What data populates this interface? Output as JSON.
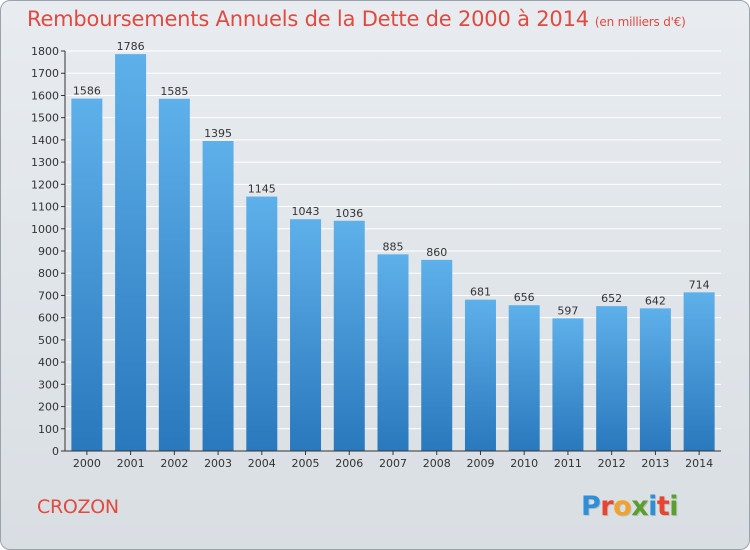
{
  "chart_data": {
    "type": "bar",
    "title": "Remboursements Annuels de la Dette de 2000 à 2014",
    "subtitle": "(en milliers d'€)",
    "categories": [
      "2000",
      "2001",
      "2002",
      "2003",
      "2004",
      "2005",
      "2006",
      "2007",
      "2008",
      "2009",
      "2010",
      "2011",
      "2012",
      "2013",
      "2014"
    ],
    "values": [
      1586,
      1786,
      1585,
      1395,
      1145,
      1043,
      1036,
      885,
      860,
      681,
      656,
      597,
      652,
      642,
      714
    ],
    "ylim": [
      0,
      1800
    ],
    "yticks": [
      0,
      100,
      200,
      300,
      400,
      500,
      600,
      700,
      800,
      900,
      1000,
      1100,
      1200,
      1300,
      1400,
      1500,
      1600,
      1700,
      1800
    ],
    "grid": true,
    "bar_color_top": "#5eb0ea",
    "bar_color_bottom": "#2a78bd"
  },
  "footer": {
    "town": "CROZON",
    "logo": "Proxiti"
  },
  "colors": {
    "title": "#e04a3f",
    "logo": [
      "#2f8fd6",
      "#e7452f",
      "#f0a22a",
      "#5a9e2e",
      "#2f8fd6",
      "#e7452f",
      "#5a9e2e"
    ]
  }
}
